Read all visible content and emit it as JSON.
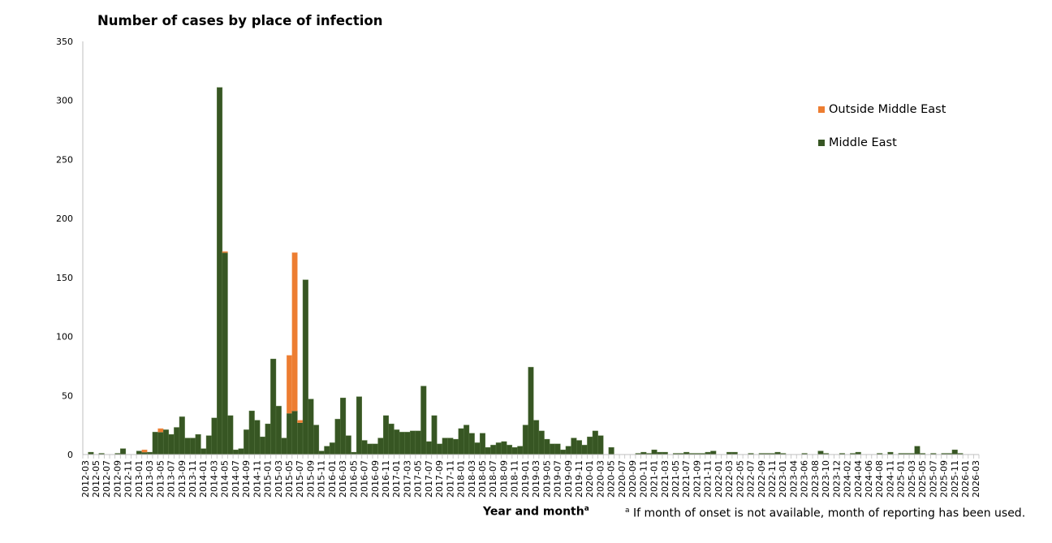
{
  "chart_data": {
    "type": "bar",
    "stacked": true,
    "title": "Number of cases by place of infection",
    "xlabel": "Year and month",
    "xlabel_superscript": "a",
    "ylabel": "",
    "ylim": [
      0,
      350
    ],
    "yticks": [
      0,
      50,
      100,
      150,
      200,
      250,
      300,
      350
    ],
    "grid": false,
    "legend_position": "right",
    "footnote_marker": "a",
    "footnote": "If month of onset is not available, month of reporting has been used.",
    "categories": [
      "2012-03",
      "2012-04",
      "2012-05",
      "2012-06",
      "2012-07",
      "2012-08",
      "2012-09",
      "2012-10",
      "2012-11",
      "2012-12",
      "2013-01",
      "2013-02",
      "2013-03",
      "2013-04",
      "2013-05",
      "2013-06",
      "2013-07",
      "2013-08",
      "2013-09",
      "2013-10",
      "2013-11",
      "2013-12",
      "2014-01",
      "2014-02",
      "2014-03",
      "2014-04",
      "2014-05",
      "2014-06",
      "2014-07",
      "2014-08",
      "2014-09",
      "2014-10",
      "2014-11",
      "2014-12",
      "2015-01",
      "2015-02",
      "2015-03",
      "2015-04",
      "2015-05",
      "2015-06",
      "2015-07",
      "2015-08",
      "2015-09",
      "2015-10",
      "2015-11",
      "2015-12",
      "2016-01",
      "2016-02",
      "2016-03",
      "2016-04",
      "2016-05",
      "2016-06",
      "2016-07",
      "2016-08",
      "2016-09",
      "2016-10",
      "2016-11",
      "2016-12",
      "2017-01",
      "2017-02",
      "2017-03",
      "2017-04",
      "2017-05",
      "2017-06",
      "2017-07",
      "2017-08",
      "2017-09",
      "2017-10",
      "2017-11",
      "2017-12",
      "2018-01",
      "2018-02",
      "2018-03",
      "2018-04",
      "2018-05",
      "2018-06",
      "2018-07",
      "2018-08",
      "2018-09",
      "2018-10",
      "2018-11",
      "2018-12",
      "2019-01",
      "2019-02",
      "2019-03",
      "2019-04",
      "2019-05",
      "2019-06",
      "2019-07",
      "2019-08",
      "2019-09",
      "2019-10",
      "2019-11",
      "2019-12",
      "2020-01",
      "2020-02",
      "2020-03",
      "2020-04",
      "2020-05",
      "2020-06",
      "2020-07",
      "2020-08",
      "2020-09",
      "2020-10",
      "2020-11",
      "2020-12",
      "2021-01",
      "2021-02",
      "2021-03",
      "2021-04",
      "2021-05",
      "2021-06",
      "2021-07",
      "2021-08",
      "2021-09",
      "2021-10",
      "2021-11",
      "2021-12",
      "2022-01",
      "2022-02",
      "2022-03",
      "2022-04",
      "2022-05",
      "2022-06",
      "2022-07",
      "2022-08",
      "2022-09",
      "2022-10",
      "2022-11",
      "2022-12",
      "2023-01",
      "2023-02",
      "2023-04",
      "2023-05",
      "2023-06",
      "2023-07",
      "2023-08",
      "2023-09",
      "2023-10",
      "2023-11",
      "2023-12",
      "2024-01",
      "2024-02",
      "2024-03",
      "2024-04",
      "2024-05",
      "2024-06",
      "2024-07",
      "2024-08",
      "2024-09",
      "2024-11",
      "2024-12",
      "2025-01",
      "2025-02",
      "2025-03",
      "2025-04",
      "2025-05",
      "2025-06",
      "2025-07",
      "2025-08",
      "2025-09",
      "2025-10",
      "2025-11",
      "2025-12",
      "2026-01",
      "2026-02",
      "2026-03"
    ],
    "series": [
      {
        "name": "Middle East",
        "color": "#375623",
        "values": [
          0,
          2,
          0,
          1,
          0,
          0,
          1,
          5,
          0,
          0,
          3,
          2,
          2,
          19,
          19,
          21,
          17,
          23,
          32,
          14,
          14,
          17,
          5,
          16,
          31,
          311,
          171,
          33,
          4,
          5,
          21,
          37,
          29,
          15,
          26,
          81,
          41,
          14,
          35,
          37,
          27,
          148,
          47,
          25,
          3,
          7,
          10,
          30,
          48,
          16,
          2,
          49,
          12,
          9,
          9,
          14,
          33,
          26,
          21,
          19,
          19,
          20,
          20,
          58,
          11,
          33,
          9,
          14,
          14,
          13,
          22,
          25,
          18,
          10,
          18,
          6,
          8,
          10,
          11,
          8,
          6,
          7,
          25,
          74,
          29,
          20,
          13,
          9,
          9,
          4,
          7,
          14,
          12,
          8,
          15,
          20,
          16,
          0,
          6,
          0,
          0,
          0,
          0,
          1,
          2,
          1,
          4,
          2,
          2,
          0,
          1,
          1,
          2,
          1,
          1,
          1,
          2,
          3,
          0,
          0,
          2,
          2,
          0,
          0,
          1,
          0,
          1,
          1,
          1,
          2,
          1,
          0,
          0,
          0,
          1,
          0,
          0,
          3,
          1,
          0,
          0,
          1,
          0,
          1,
          2,
          0,
          0,
          0,
          1,
          0,
          2,
          0,
          1,
          1,
          1,
          7,
          1,
          0,
          1,
          0,
          1,
          1,
          4,
          1,
          0,
          0,
          0
        ]
      },
      {
        "name": "Outside Middle East",
        "color": "#ED7D31",
        "values": [
          0,
          0,
          0,
          0,
          0,
          0,
          0,
          0,
          0,
          0,
          0,
          2,
          0,
          0,
          3,
          0,
          0,
          0,
          0,
          0,
          0,
          0,
          0,
          0,
          0,
          0,
          1,
          0,
          0,
          0,
          0,
          0,
          0,
          0,
          0,
          0,
          0,
          0,
          49,
          134,
          2,
          0,
          0,
          0,
          0,
          0,
          0,
          0,
          0,
          0,
          0,
          0,
          0,
          0,
          0,
          0,
          0,
          0,
          0,
          0,
          0,
          0,
          0,
          0,
          0,
          0,
          0,
          0,
          0,
          0,
          0,
          0,
          0,
          0,
          0,
          0,
          0,
          0,
          0,
          0,
          0,
          0,
          0,
          0,
          0,
          0,
          0,
          0,
          0,
          0,
          0,
          0,
          0,
          0,
          0,
          0,
          0,
          0,
          0,
          0,
          0,
          0,
          0,
          0,
          0,
          0,
          0,
          0,
          0,
          0,
          0,
          0,
          0,
          0,
          0,
          0,
          0,
          0,
          0,
          0,
          0,
          0,
          0,
          0,
          0,
          0,
          0,
          0,
          0,
          0,
          0,
          0,
          0,
          0,
          0,
          0,
          0,
          0,
          0,
          0,
          0,
          0,
          0,
          0,
          0,
          0,
          0,
          0,
          0,
          0,
          0,
          0,
          0,
          0,
          0,
          0,
          0,
          0,
          0,
          0,
          0,
          0,
          0,
          0,
          0,
          0,
          0
        ]
      }
    ],
    "legend": [
      "Outside Middle East",
      "Middle East"
    ]
  }
}
